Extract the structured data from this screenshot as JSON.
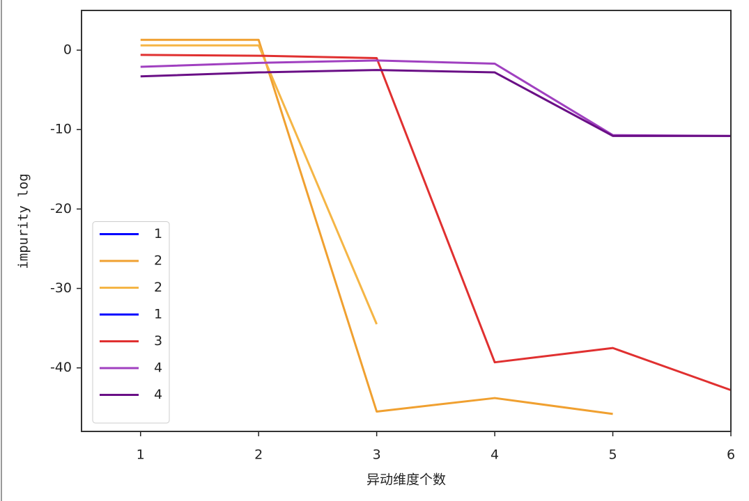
{
  "chart_data": {
    "type": "line",
    "x_label": "异动维度个数",
    "y_label": "impurity log",
    "x": [
      1,
      2,
      3,
      4,
      5,
      6
    ],
    "series": [
      {
        "name": "1",
        "color": "#0000ff",
        "values": [
          null,
          null,
          null,
          null,
          null,
          null
        ]
      },
      {
        "name": "2",
        "color": "#f0a030",
        "values": [
          1.3,
          1.3,
          -45.5,
          -43.8,
          -45.8,
          null
        ]
      },
      {
        "name": "2",
        "color": "#f5b545",
        "values": [
          0.6,
          0.6,
          -34.5,
          null,
          null,
          null
        ]
      },
      {
        "name": "1",
        "color": "#0000ff",
        "values": [
          null,
          null,
          null,
          null,
          null,
          null
        ]
      },
      {
        "name": "3",
        "color": "#e03030",
        "values": [
          -0.6,
          -0.7,
          -1.0,
          -39.3,
          -37.5,
          -42.8
        ]
      },
      {
        "name": "4",
        "color": "#a040c0",
        "values": [
          -2.1,
          -1.6,
          -1.3,
          -1.7,
          -10.7,
          -10.8
        ]
      },
      {
        "name": "4",
        "color": "#6a0f86",
        "values": [
          -3.3,
          -2.8,
          -2.5,
          -2.8,
          -10.8,
          -10.8
        ]
      }
    ],
    "xlim": [
      0.5,
      6
    ],
    "xticks": [
      1,
      2,
      3,
      4,
      5,
      6
    ],
    "ylim": [
      -48,
      5
    ],
    "yticks": [
      0,
      -10,
      -20,
      -30,
      -40
    ],
    "grid": false,
    "legend": "lower left"
  }
}
